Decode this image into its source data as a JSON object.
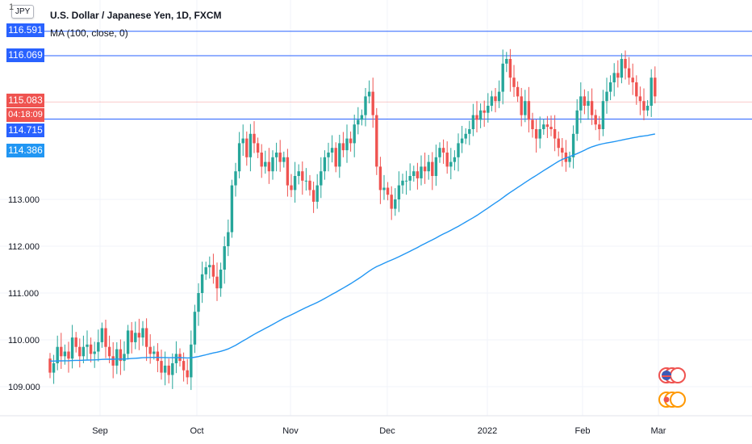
{
  "header": {
    "pair_tag": "JPY",
    "pair_tag_shadow": "1",
    "title": "U.S. Dollar / Japanese Yen, 1D, FXCM",
    "indicator": "MA (100, close, 0)"
  },
  "price_labels": [
    {
      "value": "116.591",
      "color": "#2962ff"
    },
    {
      "value": "116.069",
      "color": "#2962ff"
    },
    {
      "value": "115.083",
      "color": "#ef5350"
    },
    {
      "value": "114.715",
      "color": "#2962ff"
    },
    {
      "value": "114.386",
      "color": "#2196f3"
    }
  ],
  "countdown": "04:18:09",
  "colors": {
    "up": "#26a69a",
    "down": "#ef5350",
    "ma": "#2196f3",
    "hline": "#2962ff",
    "grid": "#f0f3fa"
  },
  "chart_data": {
    "type": "candlestick",
    "title": "U.S. Dollar / Japanese Yen, 1D, FXCM",
    "y_ticks": [
      "113.000",
      "112.000",
      "111.000",
      "110.000",
      "109.000"
    ],
    "x_ticks": [
      "Sep",
      "Oct",
      "Nov",
      "Dec",
      "2022",
      "Feb",
      "Mar"
    ],
    "ylim": [
      108.35,
      117.4
    ],
    "horizontal_lines": [
      116.591,
      116.069,
      114.715
    ],
    "last_price": 115.083,
    "ma_label": "MA (100, close, 0)",
    "candles_close": [
      109.3,
      109.5,
      109.85,
      109.65,
      109.75,
      109.6,
      110.05,
      109.85,
      109.65,
      109.85,
      109.9,
      109.7,
      109.75,
      109.95,
      110.25,
      109.85,
      109.65,
      109.45,
      109.8,
      109.55,
      109.7,
      110.2,
      109.95,
      110.15,
      110.05,
      110.25,
      109.85,
      109.7,
      109.75,
      109.55,
      109.3,
      109.45,
      109.25,
      109.5,
      109.7,
      109.55,
      109.35,
      109.2,
      109.9,
      110.6,
      111.0,
      111.4,
      111.55,
      111.6,
      111.35,
      111.1,
      111.5,
      112.0,
      112.3,
      113.3,
      113.6,
      114.2,
      114.3,
      113.9,
      114.4,
      114.2,
      114.0,
      113.7,
      113.8,
      113.6,
      113.9,
      114.0,
      113.8,
      113.9,
      113.3,
      113.2,
      113.5,
      113.6,
      113.4,
      113.4,
      113.2,
      112.95,
      113.3,
      113.6,
      113.9,
      114.0,
      114.1,
      113.7,
      114.2,
      114.05,
      114.3,
      114.2,
      114.6,
      114.7,
      114.8,
      115.2,
      115.3,
      114.8,
      113.7,
      113.2,
      113.25,
      113.1,
      112.8,
      113.0,
      113.3,
      113.4,
      113.4,
      113.5,
      113.6,
      113.45,
      113.7,
      113.6,
      113.8,
      113.5,
      113.9,
      114.1,
      114.0,
      113.7,
      113.8,
      113.9,
      114.2,
      114.3,
      114.4,
      114.5,
      114.8,
      114.7,
      114.9,
      114.85,
      115.0,
      115.2,
      115.1,
      115.3,
      115.9,
      116.0,
      115.6,
      115.4,
      115.2,
      114.8,
      115.1,
      114.7,
      114.5,
      114.3,
      114.5,
      114.6,
      114.55,
      114.5,
      114.3,
      114.1,
      114.0,
      113.8,
      113.9,
      114.4,
      114.9,
      115.2,
      115.0,
      115.1,
      114.8,
      114.6,
      114.5,
      115.1,
      115.3,
      115.5,
      115.7,
      115.6,
      116.0,
      115.8,
      115.6,
      115.5,
      115.2,
      115.1,
      114.9,
      115.0,
      115.6,
      115.2
    ]
  }
}
